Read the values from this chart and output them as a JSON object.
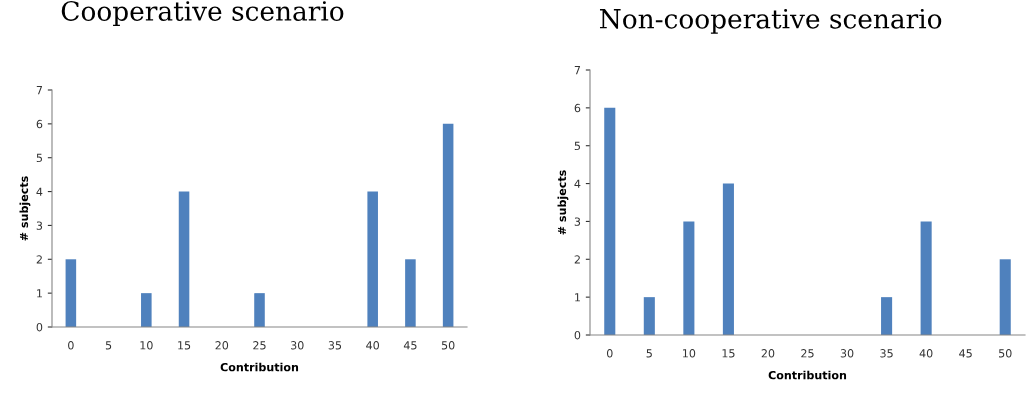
{
  "chart_data": [
    {
      "type": "bar",
      "title": "Cooperative scenario",
      "xlabel": "Contribution",
      "ylabel": "# subjects",
      "categories": [
        "0",
        "5",
        "10",
        "15",
        "20",
        "25",
        "30",
        "35",
        "40",
        "45",
        "50"
      ],
      "values": [
        2,
        0,
        1,
        4,
        0,
        1,
        0,
        0,
        4,
        2,
        6
      ],
      "color": "#4f81bd",
      "ylim": [
        0,
        7
      ],
      "yticks": [
        0,
        1,
        2,
        3,
        4,
        5,
        6,
        7
      ],
      "grid": false,
      "legend": false
    },
    {
      "type": "bar",
      "title": "Non-cooperative scenario",
      "xlabel": "Contribution",
      "ylabel": "# subjects",
      "categories": [
        "0",
        "5",
        "10",
        "15",
        "20",
        "25",
        "30",
        "35",
        "40",
        "45",
        "50"
      ],
      "values": [
        6,
        1,
        3,
        4,
        0,
        0,
        0,
        1,
        3,
        0,
        2
      ],
      "color": "#4f81bd",
      "ylim": [
        0,
        7
      ],
      "yticks": [
        0,
        1,
        2,
        3,
        4,
        5,
        6,
        7
      ],
      "grid": false,
      "legend": false
    }
  ]
}
